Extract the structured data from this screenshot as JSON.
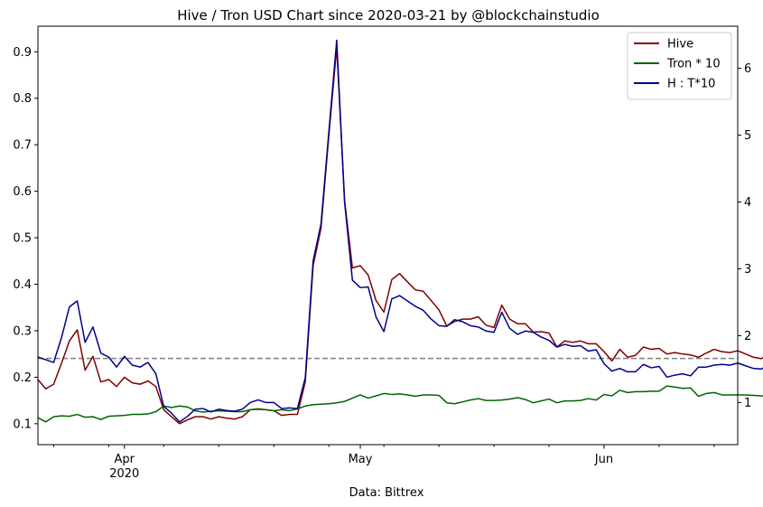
{
  "chart_data": {
    "type": "line",
    "title": "Hive / Tron USD Chart since 2020-03-21 by @blockchainstudio",
    "xlabel": "Data: Bittrex",
    "x_start": "2020-03-21",
    "x_end": "2020-06-18",
    "x_ticks": [
      {
        "date": "2020-04-01",
        "label": "Apr",
        "sublabel": "2020"
      },
      {
        "date": "2020-05-01",
        "label": "May",
        "sublabel": ""
      },
      {
        "date": "2020-06-01",
        "label": "Jun",
        "sublabel": ""
      }
    ],
    "left_axis": {
      "ylim": [
        0.055,
        0.955
      ],
      "ticks": [
        "0.1",
        "0.2",
        "0.3",
        "0.4",
        "0.5",
        "0.6",
        "0.7",
        "0.8",
        "0.9"
      ]
    },
    "right_axis": {
      "ylim": [
        0.37,
        6.63
      ],
      "ticks": [
        "1",
        "2",
        "3",
        "4",
        "5",
        "6"
      ]
    },
    "reference_line": {
      "axis": "right",
      "value": 1.66,
      "color": "#808080",
      "style": "dashed"
    },
    "legend_position": "top-right",
    "series": [
      {
        "name": "Hive",
        "axis": "left",
        "color": "#800000",
        "start": "2020-03-21",
        "values": [
          0.195,
          0.175,
          0.185,
          0.23,
          0.278,
          0.302,
          0.215,
          0.245,
          0.19,
          0.195,
          0.18,
          0.2,
          0.188,
          0.185,
          0.192,
          0.18,
          0.13,
          0.115,
          0.1,
          0.108,
          0.115,
          0.115,
          0.11,
          0.115,
          0.112,
          0.11,
          0.115,
          0.13,
          0.132,
          0.13,
          0.128,
          0.118,
          0.12,
          0.12,
          0.19,
          0.44,
          0.52,
          0.72,
          0.91,
          0.58,
          0.435,
          0.44,
          0.42,
          0.365,
          0.34,
          0.41,
          0.423,
          0.405,
          0.388,
          0.385,
          0.365,
          0.345,
          0.31,
          0.32,
          0.325,
          0.325,
          0.33,
          0.312,
          0.307,
          0.355,
          0.325,
          0.315,
          0.315,
          0.297,
          0.298,
          0.295,
          0.265,
          0.278,
          0.275,
          0.278,
          0.272,
          0.272,
          0.255,
          0.235,
          0.26,
          0.243,
          0.247,
          0.265,
          0.26,
          0.262,
          0.25,
          0.253,
          0.25,
          0.248,
          0.243,
          0.252,
          0.26,
          0.255,
          0.253,
          0.257,
          0.25,
          0.243,
          0.24,
          0.25
        ]
      },
      {
        "name": "Tron * 10",
        "axis": "left",
        "color": "#006400",
        "start": "2020-03-21",
        "values": [
          0.113,
          0.104,
          0.115,
          0.117,
          0.116,
          0.12,
          0.114,
          0.115,
          0.109,
          0.116,
          0.117,
          0.118,
          0.12,
          0.12,
          0.121,
          0.126,
          0.138,
          0.135,
          0.138,
          0.136,
          0.128,
          0.125,
          0.127,
          0.128,
          0.127,
          0.126,
          0.126,
          0.13,
          0.131,
          0.13,
          0.128,
          0.13,
          0.128,
          0.132,
          0.138,
          0.141,
          0.142,
          0.143,
          0.145,
          0.148,
          0.155,
          0.162,
          0.155,
          0.16,
          0.165,
          0.163,
          0.164,
          0.162,
          0.159,
          0.162,
          0.162,
          0.161,
          0.145,
          0.143,
          0.147,
          0.151,
          0.154,
          0.15,
          0.15,
          0.151,
          0.153,
          0.156,
          0.152,
          0.145,
          0.149,
          0.153,
          0.145,
          0.149,
          0.149,
          0.15,
          0.154,
          0.151,
          0.163,
          0.16,
          0.172,
          0.167,
          0.169,
          0.169,
          0.17,
          0.17,
          0.181,
          0.179,
          0.176,
          0.177,
          0.159,
          0.165,
          0.167,
          0.162,
          0.162,
          0.162,
          0.162,
          0.161,
          0.16,
          0.159
        ]
      },
      {
        "name": "H : T*10",
        "axis": "right",
        "color": "#00008b",
        "start": "2020-03-21",
        "values": [
          1.68,
          1.64,
          1.6,
          1.97,
          2.43,
          2.52,
          1.9,
          2.13,
          1.74,
          1.68,
          1.53,
          1.69,
          1.56,
          1.53,
          1.6,
          1.43,
          0.94,
          0.84,
          0.71,
          0.79,
          0.9,
          0.91,
          0.86,
          0.9,
          0.88,
          0.87,
          0.9,
          1.0,
          1.04,
          1.0,
          1.0,
          0.91,
          0.92,
          0.91,
          1.37,
          3.12,
          3.67,
          5.05,
          6.42,
          4.0,
          2.83,
          2.72,
          2.73,
          2.28,
          2.06,
          2.55,
          2.6,
          2.52,
          2.44,
          2.38,
          2.25,
          2.15,
          2.14,
          2.24,
          2.21,
          2.15,
          2.13,
          2.07,
          2.05,
          2.35,
          2.11,
          2.02,
          2.07,
          2.05,
          1.98,
          1.93,
          1.83,
          1.87,
          1.84,
          1.85,
          1.77,
          1.79,
          1.58,
          1.47,
          1.51,
          1.46,
          1.46,
          1.57,
          1.52,
          1.54,
          1.38,
          1.41,
          1.43,
          1.4,
          1.53,
          1.53,
          1.56,
          1.57,
          1.56,
          1.59,
          1.55,
          1.51,
          1.5,
          1.57
        ]
      }
    ]
  }
}
